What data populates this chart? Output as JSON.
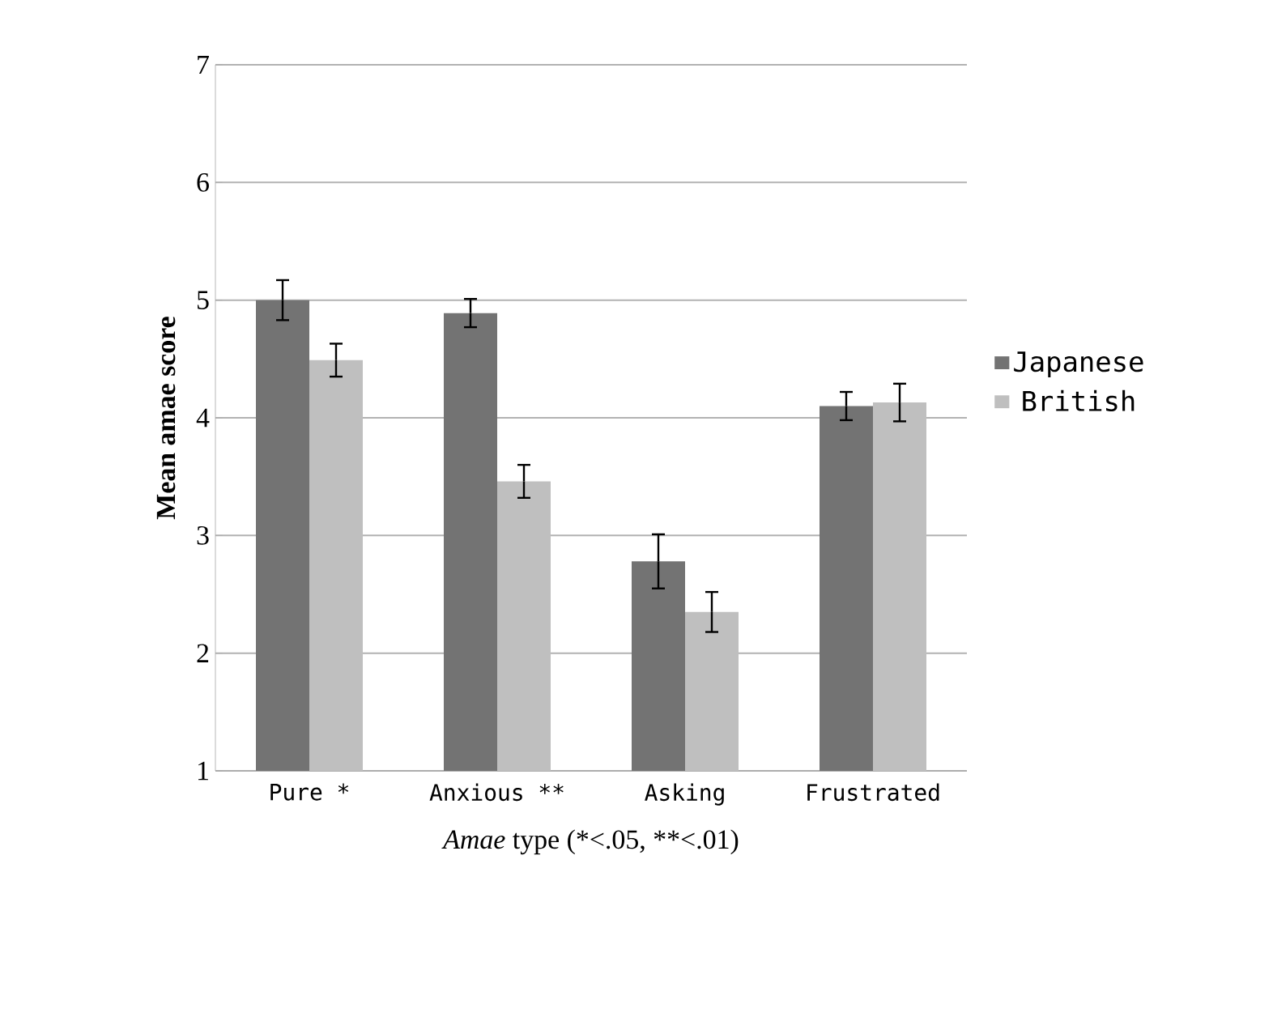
{
  "chart_data": {
    "type": "bar",
    "xlabel": "*Amae* type  (*<.05, **<.01)",
    "ylabel": "Mean amae score",
    "categories": [
      "Pure *",
      "Anxious **",
      "Asking",
      "Frustrated"
    ],
    "series": [
      {
        "name": "Japanese",
        "color": "#737373",
        "values": [
          5.0,
          4.89,
          2.78,
          4.1
        ],
        "errors": [
          0.17,
          0.12,
          0.23,
          0.12
        ]
      },
      {
        "name": "British",
        "color": "#bfbfbf",
        "values": [
          4.49,
          3.46,
          2.35,
          4.13
        ],
        "errors": [
          0.14,
          0.14,
          0.17,
          0.16
        ]
      }
    ],
    "ylim": [
      1,
      7
    ],
    "yticks": [
      1,
      2,
      3,
      4,
      5,
      6,
      7
    ],
    "grid": "y",
    "legend": "right"
  }
}
